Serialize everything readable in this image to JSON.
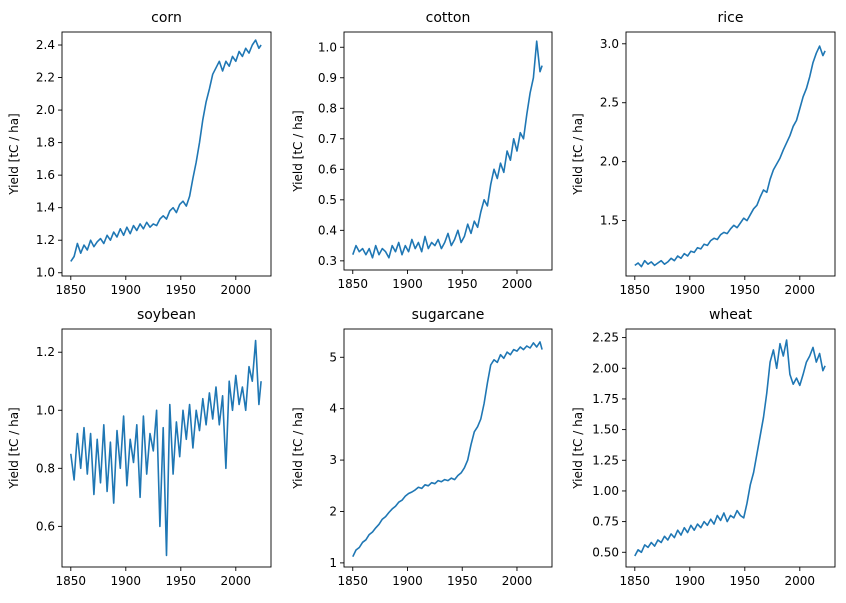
{
  "figure": {
    "line_color": "#1f77b4"
  },
  "chart_data": [
    {
      "type": "line",
      "title": "corn",
      "xlabel": "",
      "ylabel": "Yield [tC / ha]",
      "xlim": [
        1842,
        2032
      ],
      "ylim": [
        0.98,
        2.48
      ],
      "xticks": [
        1850,
        1900,
        1950,
        2000
      ],
      "yticks": [
        1.0,
        1.2,
        1.4,
        1.6,
        1.8,
        2.0,
        2.2,
        2.4
      ],
      "ytick_labels": [
        "1.0",
        "1.2",
        "1.4",
        "1.6",
        "1.8",
        "2.0",
        "2.2",
        "2.4"
      ],
      "x": [
        1850,
        1853,
        1856,
        1859,
        1862,
        1865,
        1868,
        1871,
        1874,
        1877,
        1880,
        1883,
        1886,
        1889,
        1892,
        1895,
        1898,
        1901,
        1904,
        1907,
        1910,
        1913,
        1916,
        1919,
        1922,
        1925,
        1928,
        1931,
        1934,
        1937,
        1940,
        1943,
        1946,
        1949,
        1952,
        1955,
        1958,
        1961,
        1964,
        1967,
        1970,
        1973,
        1976,
        1979,
        1982,
        1985,
        1988,
        1991,
        1994,
        1997,
        2000,
        2003,
        2006,
        2009,
        2012,
        2015,
        2018,
        2021,
        2023
      ],
      "series": [
        {
          "values": [
            1.07,
            1.1,
            1.18,
            1.12,
            1.17,
            1.14,
            1.2,
            1.16,
            1.19,
            1.21,
            1.18,
            1.23,
            1.2,
            1.25,
            1.22,
            1.27,
            1.23,
            1.28,
            1.24,
            1.29,
            1.26,
            1.3,
            1.27,
            1.31,
            1.28,
            1.3,
            1.29,
            1.33,
            1.35,
            1.33,
            1.38,
            1.4,
            1.37,
            1.42,
            1.44,
            1.41,
            1.47,
            1.58,
            1.68,
            1.8,
            1.94,
            2.05,
            2.13,
            2.22,
            2.26,
            2.3,
            2.24,
            2.3,
            2.27,
            2.33,
            2.3,
            2.36,
            2.33,
            2.38,
            2.35,
            2.4,
            2.43,
            2.38,
            2.4
          ]
        }
      ]
    },
    {
      "type": "line",
      "title": "cotton",
      "xlabel": "",
      "ylabel": "Yield [tC / ha]",
      "xlim": [
        1842,
        2032
      ],
      "ylim": [
        0.27,
        1.05
      ],
      "xticks": [
        1850,
        1900,
        1950,
        2000
      ],
      "yticks": [
        0.3,
        0.4,
        0.5,
        0.6,
        0.7,
        0.8,
        0.9,
        1.0
      ],
      "ytick_labels": [
        "0.3",
        "0.4",
        "0.5",
        "0.6",
        "0.7",
        "0.8",
        "0.9",
        "1.0"
      ],
      "x": [
        1850,
        1853,
        1856,
        1859,
        1862,
        1865,
        1868,
        1871,
        1874,
        1877,
        1880,
        1883,
        1886,
        1889,
        1892,
        1895,
        1898,
        1901,
        1904,
        1907,
        1910,
        1913,
        1916,
        1919,
        1922,
        1925,
        1928,
        1931,
        1934,
        1937,
        1940,
        1943,
        1946,
        1949,
        1952,
        1955,
        1958,
        1961,
        1964,
        1967,
        1970,
        1973,
        1976,
        1979,
        1982,
        1985,
        1988,
        1991,
        1994,
        1997,
        2000,
        2003,
        2006,
        2009,
        2012,
        2015,
        2018,
        2021,
        2023
      ],
      "series": [
        {
          "values": [
            0.32,
            0.35,
            0.33,
            0.34,
            0.32,
            0.34,
            0.31,
            0.35,
            0.32,
            0.34,
            0.33,
            0.31,
            0.35,
            0.33,
            0.36,
            0.32,
            0.35,
            0.33,
            0.37,
            0.34,
            0.36,
            0.33,
            0.38,
            0.34,
            0.36,
            0.35,
            0.37,
            0.34,
            0.36,
            0.39,
            0.35,
            0.37,
            0.4,
            0.36,
            0.38,
            0.42,
            0.39,
            0.43,
            0.41,
            0.46,
            0.5,
            0.48,
            0.55,
            0.6,
            0.57,
            0.62,
            0.59,
            0.66,
            0.63,
            0.7,
            0.66,
            0.72,
            0.7,
            0.78,
            0.85,
            0.9,
            1.02,
            0.92,
            0.94
          ]
        }
      ]
    },
    {
      "type": "line",
      "title": "rice",
      "xlabel": "",
      "ylabel": "Yield [tC / ha]",
      "xlim": [
        1842,
        2032
      ],
      "ylim": [
        1.03,
        3.1
      ],
      "xticks": [
        1850,
        1900,
        1950,
        2000
      ],
      "yticks": [
        1.5,
        2.0,
        2.5,
        3.0
      ],
      "ytick_labels": [
        "1.5",
        "2.0",
        "2.5",
        "3.0"
      ],
      "x": [
        1850,
        1853,
        1856,
        1859,
        1862,
        1865,
        1868,
        1871,
        1874,
        1877,
        1880,
        1883,
        1886,
        1889,
        1892,
        1895,
        1898,
        1901,
        1904,
        1907,
        1910,
        1913,
        1916,
        1919,
        1922,
        1925,
        1928,
        1931,
        1934,
        1937,
        1940,
        1943,
        1946,
        1949,
        1952,
        1955,
        1958,
        1961,
        1964,
        1967,
        1970,
        1973,
        1976,
        1979,
        1982,
        1985,
        1988,
        1991,
        1994,
        1997,
        2000,
        2003,
        2006,
        2009,
        2012,
        2015,
        2018,
        2021,
        2023
      ],
      "series": [
        {
          "values": [
            1.12,
            1.14,
            1.11,
            1.16,
            1.13,
            1.15,
            1.12,
            1.14,
            1.16,
            1.13,
            1.15,
            1.18,
            1.16,
            1.2,
            1.18,
            1.22,
            1.2,
            1.24,
            1.23,
            1.27,
            1.26,
            1.3,
            1.29,
            1.33,
            1.35,
            1.34,
            1.38,
            1.4,
            1.39,
            1.43,
            1.46,
            1.44,
            1.48,
            1.52,
            1.5,
            1.55,
            1.6,
            1.63,
            1.7,
            1.76,
            1.74,
            1.85,
            1.93,
            1.98,
            2.03,
            2.1,
            2.16,
            2.22,
            2.3,
            2.35,
            2.45,
            2.55,
            2.62,
            2.72,
            2.84,
            2.92,
            2.98,
            2.9,
            2.94
          ]
        }
      ]
    },
    {
      "type": "line",
      "title": "soybean",
      "xlabel": "",
      "ylabel": "Yield [tC / ha]",
      "xlim": [
        1842,
        2032
      ],
      "ylim": [
        0.46,
        1.28
      ],
      "xticks": [
        1850,
        1900,
        1950,
        2000
      ],
      "yticks": [
        0.6,
        0.8,
        1.0,
        1.2
      ],
      "ytick_labels": [
        "0.6",
        "0.8",
        "1.0",
        "1.2"
      ],
      "x": [
        1850,
        1853,
        1856,
        1859,
        1862,
        1865,
        1868,
        1871,
        1874,
        1877,
        1880,
        1883,
        1886,
        1889,
        1892,
        1895,
        1898,
        1901,
        1904,
        1907,
        1910,
        1913,
        1916,
        1919,
        1922,
        1925,
        1928,
        1931,
        1934,
        1937,
        1940,
        1943,
        1946,
        1949,
        1952,
        1955,
        1958,
        1961,
        1964,
        1967,
        1970,
        1973,
        1976,
        1979,
        1982,
        1985,
        1988,
        1991,
        1994,
        1997,
        2000,
        2003,
        2006,
        2009,
        2012,
        2015,
        2018,
        2021,
        2023
      ],
      "series": [
        {
          "values": [
            0.85,
            0.76,
            0.92,
            0.8,
            0.94,
            0.78,
            0.92,
            0.71,
            0.9,
            0.75,
            0.95,
            0.72,
            0.89,
            0.68,
            0.93,
            0.8,
            0.98,
            0.74,
            0.9,
            0.82,
            0.95,
            0.7,
            0.98,
            0.78,
            0.92,
            0.86,
            1.0,
            0.6,
            0.94,
            0.5,
            1.02,
            0.78,
            0.96,
            0.84,
            1.0,
            0.9,
            1.02,
            0.87,
            1.0,
            0.93,
            1.04,
            0.95,
            1.06,
            0.97,
            1.08,
            0.95,
            1.05,
            0.8,
            1.1,
            1.0,
            1.12,
            1.02,
            1.08,
            1.0,
            1.15,
            1.1,
            1.24,
            1.02,
            1.1
          ]
        }
      ]
    },
    {
      "type": "line",
      "title": "sugarcane",
      "xlabel": "",
      "ylabel": "Yield [tC / ha]",
      "xlim": [
        1842,
        2032
      ],
      "ylim": [
        0.92,
        5.55
      ],
      "xticks": [
        1850,
        1900,
        1950,
        2000
      ],
      "yticks": [
        1,
        2,
        3,
        4,
        5
      ],
      "ytick_labels": [
        "1",
        "2",
        "3",
        "4",
        "5"
      ],
      "x": [
        1850,
        1853,
        1856,
        1859,
        1862,
        1865,
        1868,
        1871,
        1874,
        1877,
        1880,
        1883,
        1886,
        1889,
        1892,
        1895,
        1898,
        1901,
        1904,
        1907,
        1910,
        1913,
        1916,
        1919,
        1922,
        1925,
        1928,
        1931,
        1934,
        1937,
        1940,
        1943,
        1946,
        1949,
        1952,
        1955,
        1958,
        1961,
        1964,
        1967,
        1970,
        1973,
        1976,
        1979,
        1982,
        1985,
        1988,
        1991,
        1994,
        1997,
        2000,
        2003,
        2006,
        2009,
        2012,
        2015,
        2018,
        2021,
        2023
      ],
      "series": [
        {
          "values": [
            1.12,
            1.25,
            1.3,
            1.4,
            1.45,
            1.55,
            1.6,
            1.68,
            1.75,
            1.85,
            1.9,
            1.98,
            2.05,
            2.1,
            2.18,
            2.22,
            2.3,
            2.35,
            2.38,
            2.42,
            2.47,
            2.45,
            2.52,
            2.5,
            2.56,
            2.54,
            2.6,
            2.58,
            2.62,
            2.6,
            2.65,
            2.62,
            2.7,
            2.75,
            2.85,
            3.0,
            3.3,
            3.55,
            3.65,
            3.8,
            4.1,
            4.5,
            4.85,
            4.95,
            4.9,
            5.05,
            4.98,
            5.1,
            5.05,
            5.15,
            5.12,
            5.2,
            5.15,
            5.22,
            5.18,
            5.28,
            5.2,
            5.3,
            5.15
          ]
        }
      ]
    },
    {
      "type": "line",
      "title": "wheat",
      "xlabel": "",
      "ylabel": "Yield [tC / ha]",
      "xlim": [
        1842,
        2032
      ],
      "ylim": [
        0.38,
        2.32
      ],
      "xticks": [
        1850,
        1900,
        1950,
        2000
      ],
      "yticks": [
        0.5,
        0.75,
        1.0,
        1.25,
        1.5,
        1.75,
        2.0,
        2.25
      ],
      "ytick_labels": [
        "0.50",
        "0.75",
        "1.00",
        "1.25",
        "1.50",
        "1.75",
        "2.00",
        "2.25"
      ],
      "x": [
        1850,
        1853,
        1856,
        1859,
        1862,
        1865,
        1868,
        1871,
        1874,
        1877,
        1880,
        1883,
        1886,
        1889,
        1892,
        1895,
        1898,
        1901,
        1904,
        1907,
        1910,
        1913,
        1916,
        1919,
        1922,
        1925,
        1928,
        1931,
        1934,
        1937,
        1940,
        1943,
        1946,
        1949,
        1952,
        1955,
        1958,
        1961,
        1964,
        1967,
        1970,
        1973,
        1976,
        1979,
        1982,
        1985,
        1988,
        1991,
        1994,
        1997,
        2000,
        2003,
        2006,
        2009,
        2012,
        2015,
        2018,
        2021,
        2023
      ],
      "series": [
        {
          "values": [
            0.47,
            0.52,
            0.5,
            0.56,
            0.54,
            0.58,
            0.55,
            0.6,
            0.58,
            0.63,
            0.6,
            0.65,
            0.62,
            0.68,
            0.64,
            0.7,
            0.66,
            0.72,
            0.68,
            0.73,
            0.7,
            0.75,
            0.72,
            0.77,
            0.73,
            0.8,
            0.76,
            0.82,
            0.75,
            0.8,
            0.78,
            0.84,
            0.8,
            0.78,
            0.9,
            1.05,
            1.15,
            1.3,
            1.45,
            1.6,
            1.8,
            2.05,
            2.15,
            2.0,
            2.2,
            2.1,
            2.23,
            1.95,
            1.87,
            1.92,
            1.86,
            1.95,
            2.05,
            2.1,
            2.17,
            2.05,
            2.12,
            1.98,
            2.02
          ]
        }
      ]
    }
  ]
}
